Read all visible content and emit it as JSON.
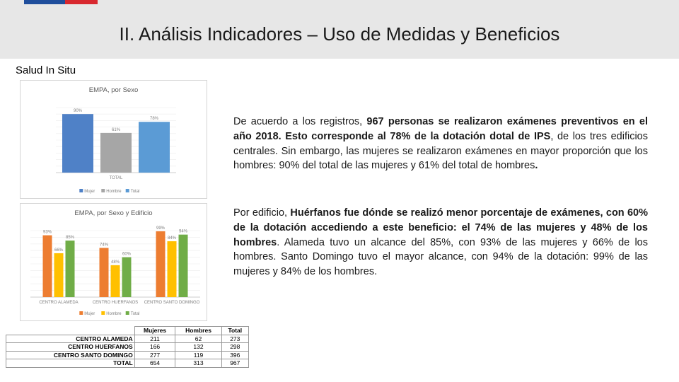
{
  "header": {
    "title": "II. Análisis Indicadores – Uso de Medidas y Beneficios",
    "colors": {
      "flag_blue": "#1f4e9c",
      "flag_red": "#d8282f",
      "band": "#e7e7e7"
    }
  },
  "section_label": "Salud In Situ",
  "paragraphs": {
    "p1": {
      "s1": "De acuerdo a los registros, ",
      "b1": "967 personas se realizaron exámenes preventivos en el año 2018. Esto corresponde al 78% de la dotación dotal de IPS",
      "s2": ", de los tres edificios centrales. Sin embargo, las mujeres se realizaron exámenes en mayor proporción que los hombres: 90% del total de las mujeres y 61% del total de hombres",
      "b2": "."
    },
    "p2": {
      "s1": "Por edificio, ",
      "b1": "Huérfanos fue dónde se realizó menor porcentaje de exámenes, con 60% de la dotación accediendo a este beneficio: el 74% de las mujeres y 48% de los hombres",
      "s2": ". Alameda tuvo un alcance del 85%, con 93% de las mujeres y 66% de los hombres. Santo Domingo tuvo el mayor alcance, con 94% de la dotación: 99% de las mujeres y 84% de los hombres."
    }
  },
  "chart_data": [
    {
      "type": "bar",
      "title": "EMPA, por Sexo",
      "categories": [
        "TOTAL"
      ],
      "series": [
        {
          "name": "Mujer",
          "values": [
            90
          ],
          "label": "90%",
          "color": "#4f81c7"
        },
        {
          "name": "Hombre",
          "values": [
            61
          ],
          "label": "61%",
          "color": "#a6a6a6"
        },
        {
          "name": "Total",
          "values": [
            78
          ],
          "label": "78%",
          "color": "#5b9bd5"
        }
      ],
      "ylim": [
        0,
        100
      ],
      "legend": "bottom",
      "grid": true
    },
    {
      "type": "bar",
      "title": "EMPA, por Sexo y Edificio",
      "categories": [
        "CENTRO ALAMEDA",
        "CENTRO HUERFANOS",
        "CENTRO SANTO DOMINGO"
      ],
      "series": [
        {
          "name": "Mujer",
          "values": [
            93,
            74,
            99
          ],
          "labels": [
            "93%",
            "74%",
            "99%"
          ],
          "color": "#ed7d31"
        },
        {
          "name": "Hombre",
          "values": [
            66,
            48,
            84
          ],
          "labels": [
            "66%",
            "48%",
            "84%"
          ],
          "color": "#ffc000"
        },
        {
          "name": "Total",
          "values": [
            85,
            60,
            94
          ],
          "labels": [
            "85%",
            "60%",
            "94%"
          ],
          "color": "#70ad47"
        }
      ],
      "ylim": [
        0,
        100
      ],
      "legend": "bottom",
      "grid": true
    }
  ],
  "table": {
    "headers": [
      "",
      "Mujeres",
      "Hombres",
      "Total"
    ],
    "rows": [
      [
        "CENTRO ALAMEDA",
        "211",
        "62",
        "273"
      ],
      [
        "CENTRO HUERFANOS",
        "166",
        "132",
        "298"
      ],
      [
        "CENTRO SANTO DOMINGO",
        "277",
        "119",
        "396"
      ],
      [
        "TOTAL",
        "654",
        "313",
        "967"
      ]
    ]
  }
}
